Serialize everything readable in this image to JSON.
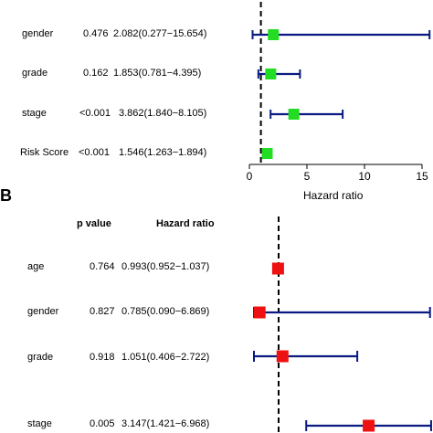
{
  "chart_data": [
    {
      "type": "forest",
      "panel": "",
      "xlabel": "Hazard ratio",
      "xlim": [
        0,
        15
      ],
      "xticks": [
        0,
        5,
        10,
        15
      ],
      "reference_line": 1,
      "marker_color": "#22dd22",
      "ci_color": "#0a1a80",
      "rows": [
        {
          "label": "gender",
          "p": "0.476",
          "hr_text": "2.082(0.277−15.654)",
          "hr": 2.082,
          "lo": 0.277,
          "hi": 15.654
        },
        {
          "label": "grade",
          "p": "0.162",
          "hr_text": "1.853(0.781−4.395)",
          "hr": 1.853,
          "lo": 0.781,
          "hi": 4.395
        },
        {
          "label": "stage",
          "p": "<0.001",
          "hr_text": "3.862(1.840−8.105)",
          "hr": 3.862,
          "lo": 1.84,
          "hi": 8.105
        },
        {
          "label": "Risk Score",
          "p": "<0.001",
          "hr_text": "1.546(1.263−1.894)",
          "hr": 1.546,
          "lo": 1.263,
          "hi": 1.894
        }
      ]
    },
    {
      "type": "forest",
      "panel": "B",
      "col_p": "p value",
      "col_hr": "Hazard ratio",
      "reference_line": 1,
      "marker_color": "#ee1111",
      "ci_color": "#0a1a80",
      "rows": [
        {
          "label": "age",
          "p": "0.764",
          "hr_text": "0.993(0.952−1.037)",
          "hr": 0.993,
          "lo": 0.952,
          "hi": 1.037
        },
        {
          "label": "gender",
          "p": "0.827",
          "hr_text": "0.785(0.090−6.869)",
          "hr": 0.785,
          "lo": 0.09,
          "hi": 6.869
        },
        {
          "label": "grade",
          "p": "0.918",
          "hr_text": "1.051(0.406−2.722)",
          "hr": 1.051,
          "lo": 0.406,
          "hi": 2.722
        },
        {
          "label": "stage",
          "p": "0.005",
          "hr_text": "3.147(1.421−6.968)",
          "hr": 3.147,
          "lo": 1.421,
          "hi": 6.968
        }
      ]
    }
  ]
}
